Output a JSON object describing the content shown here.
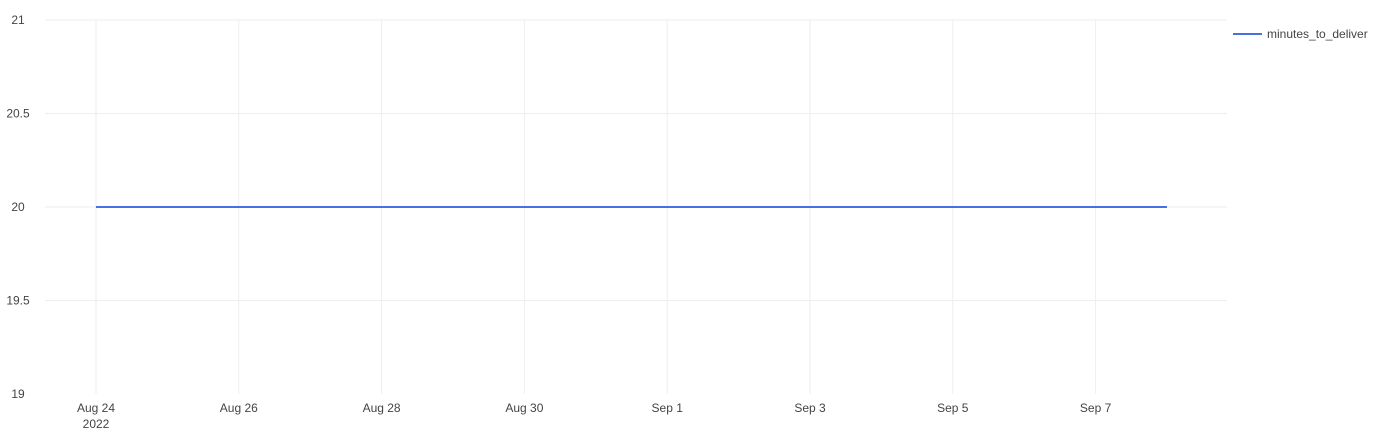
{
  "chart_data": {
    "type": "line",
    "x_type": "date",
    "xlim": [
      "2022-08-23",
      "2022-09-09"
    ],
    "x_ticks": [
      "2022-08-24",
      "2022-08-26",
      "2022-08-28",
      "2022-08-30",
      "2022-09-01",
      "2022-09-03",
      "2022-09-05",
      "2022-09-07"
    ],
    "x_tick_labels": [
      "Aug 24",
      "Aug 26",
      "Aug 28",
      "Aug 30",
      "Sep 1",
      "Sep 3",
      "Sep 5",
      "Sep 7"
    ],
    "x_year_label": "2022",
    "ylim": [
      19,
      21
    ],
    "y_ticks": [
      19,
      19.5,
      20,
      20.5,
      21
    ],
    "y_tick_labels": [
      "19",
      "19.5",
      "20",
      "20.5",
      "21"
    ],
    "grid": true,
    "legend_position": "top-right",
    "series": [
      {
        "name": "minutes_to_deliver",
        "color": "#4a6fe3",
        "x": [
          "2022-08-24",
          "2022-09-08"
        ],
        "y": [
          20,
          20
        ]
      }
    ]
  }
}
